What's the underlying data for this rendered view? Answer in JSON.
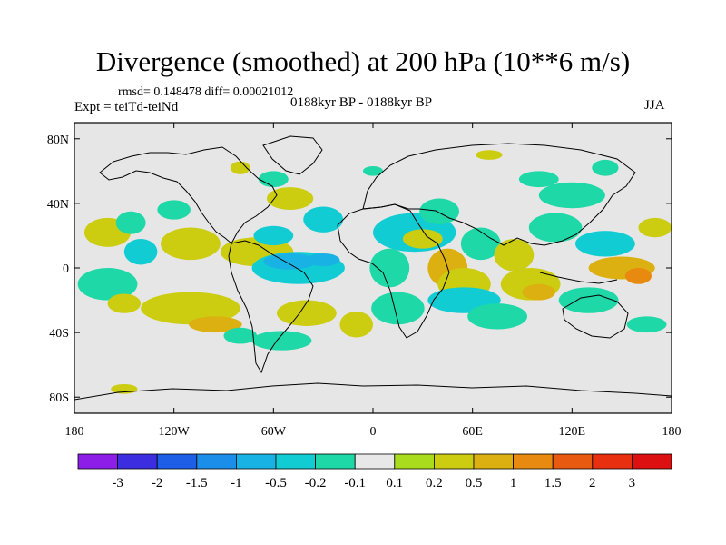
{
  "chart_data": {
    "type": "heatmap",
    "title": "Divergence (smoothed) at 200 hPa (10**6 m/s)",
    "stats": "rmsd= 0.148478 diff= 0.00021012",
    "experiment": "Expt = teiTd-teiNd",
    "period": "0188kyr BP - 0188kyr BP",
    "season": "JJA",
    "x_ticks": [
      "180",
      "120W",
      "60W",
      "0",
      "60E",
      "120E",
      "180"
    ],
    "y_ticks": [
      "80N",
      "40N",
      "0",
      "40S",
      "80S"
    ],
    "xlim": [
      -180,
      180
    ],
    "ylim": [
      -90,
      90
    ],
    "colorbar": {
      "labels": [
        "-3",
        "-2",
        "-1.5",
        "-1",
        "-0.5",
        "-0.2",
        "-0.1",
        "0.1",
        "0.2",
        "0.5",
        "1",
        "1.5",
        "2",
        "3"
      ],
      "colors": [
        "#8c1ee8",
        "#3c2ee0",
        "#1e5ee6",
        "#1a8ee8",
        "#18b2e4",
        "#12ccd4",
        "#1ed8a8",
        "#e8e8e8",
        "#a8dc1c",
        "#cccc10",
        "#dcb010",
        "#e88a10",
        "#e85a10",
        "#e83010",
        "#dc1010"
      ]
    },
    "regions": [
      {
        "lon": -160,
        "lat": 22,
        "rx": 14,
        "ry": 9,
        "level": "0.2"
      },
      {
        "lon": -140,
        "lat": 10,
        "rx": 10,
        "ry": 8,
        "level": "-0.2"
      },
      {
        "lon": -146,
        "lat": 28,
        "rx": 9,
        "ry": 7,
        "level": "-0.1"
      },
      {
        "lon": -110,
        "lat": 15,
        "rx": 18,
        "ry": 10,
        "level": "0.2"
      },
      {
        "lon": -120,
        "lat": 36,
        "rx": 10,
        "ry": 6,
        "level": "-0.1"
      },
      {
        "lon": -70,
        "lat": 10,
        "rx": 22,
        "ry": 9,
        "level": "0.2"
      },
      {
        "lon": -60,
        "lat": 20,
        "rx": 12,
        "ry": 6,
        "level": "-0.2"
      },
      {
        "lon": -50,
        "lat": 43,
        "rx": 14,
        "ry": 7,
        "level": "0.2"
      },
      {
        "lon": -60,
        "lat": 55,
        "rx": 9,
        "ry": 5,
        "level": "-0.1"
      },
      {
        "lon": -80,
        "lat": 62,
        "rx": 6,
        "ry": 4,
        "level": "0.2"
      },
      {
        "lon": -30,
        "lat": 30,
        "rx": 12,
        "ry": 8,
        "level": "-0.2"
      },
      {
        "lon": -45,
        "lat": 0,
        "rx": 28,
        "ry": 10,
        "level": "-0.2"
      },
      {
        "lon": -50,
        "lat": 4,
        "rx": 16,
        "ry": 5,
        "level": "-0.5"
      },
      {
        "lon": -30,
        "lat": 5,
        "rx": 10,
        "ry": 4,
        "level": "-0.5"
      },
      {
        "lon": -160,
        "lat": -10,
        "rx": 18,
        "ry": 10,
        "level": "-0.1"
      },
      {
        "lon": -150,
        "lat": -22,
        "rx": 10,
        "ry": 6,
        "level": "0.2"
      },
      {
        "lon": -110,
        "lat": -25,
        "rx": 30,
        "ry": 10,
        "level": "0.2"
      },
      {
        "lon": -95,
        "lat": -35,
        "rx": 16,
        "ry": 5,
        "level": "0.5"
      },
      {
        "lon": -40,
        "lat": -28,
        "rx": 18,
        "ry": 8,
        "level": "0.2"
      },
      {
        "lon": -55,
        "lat": -45,
        "rx": 18,
        "ry": 6,
        "level": "-0.1"
      },
      {
        "lon": -80,
        "lat": -42,
        "rx": 10,
        "ry": 5,
        "level": "-0.1"
      },
      {
        "lon": -10,
        "lat": -35,
        "rx": 10,
        "ry": 8,
        "level": "0.2"
      },
      {
        "lon": -150,
        "lat": -75,
        "rx": 8,
        "ry": 3,
        "level": "0.2"
      },
      {
        "lon": 25,
        "lat": 22,
        "rx": 25,
        "ry": 12,
        "level": "-0.2"
      },
      {
        "lon": 30,
        "lat": 18,
        "rx": 12,
        "ry": 6,
        "level": "0.2"
      },
      {
        "lon": 10,
        "lat": 0,
        "rx": 12,
        "ry": 12,
        "level": "-0.1"
      },
      {
        "lon": 15,
        "lat": -25,
        "rx": 16,
        "ry": 10,
        "level": "-0.1"
      },
      {
        "lon": 40,
        "lat": 35,
        "rx": 12,
        "ry": 8,
        "level": "-0.1"
      },
      {
        "lon": 45,
        "lat": 0,
        "rx": 12,
        "ry": 12,
        "level": "0.5"
      },
      {
        "lon": 55,
        "lat": -10,
        "rx": 16,
        "ry": 10,
        "level": "0.2"
      },
      {
        "lon": 55,
        "lat": -20,
        "rx": 22,
        "ry": 8,
        "level": "-0.2"
      },
      {
        "lon": 65,
        "lat": 15,
        "rx": 12,
        "ry": 10,
        "level": "-0.1"
      },
      {
        "lon": 85,
        "lat": 8,
        "rx": 12,
        "ry": 10,
        "level": "0.2"
      },
      {
        "lon": 95,
        "lat": -10,
        "rx": 18,
        "ry": 10,
        "level": "0.2"
      },
      {
        "lon": 100,
        "lat": -15,
        "rx": 10,
        "ry": 5,
        "level": "0.5"
      },
      {
        "lon": 75,
        "lat": -30,
        "rx": 18,
        "ry": 8,
        "level": "-0.1"
      },
      {
        "lon": 110,
        "lat": 25,
        "rx": 16,
        "ry": 9,
        "level": "-0.1"
      },
      {
        "lon": 120,
        "lat": 45,
        "rx": 20,
        "ry": 8,
        "level": "-0.1"
      },
      {
        "lon": 140,
        "lat": 15,
        "rx": 18,
        "ry": 8,
        "level": "-0.2"
      },
      {
        "lon": 150,
        "lat": 0,
        "rx": 20,
        "ry": 7,
        "level": "0.5"
      },
      {
        "lon": 160,
        "lat": -5,
        "rx": 8,
        "ry": 5,
        "level": "1"
      },
      {
        "lon": 130,
        "lat": -20,
        "rx": 18,
        "ry": 8,
        "level": "-0.1"
      },
      {
        "lon": 170,
        "lat": 25,
        "rx": 10,
        "ry": 6,
        "level": "0.2"
      },
      {
        "lon": 165,
        "lat": -35,
        "rx": 12,
        "ry": 5,
        "level": "-0.1"
      },
      {
        "lon": 100,
        "lat": 55,
        "rx": 12,
        "ry": 5,
        "level": "-0.1"
      },
      {
        "lon": 140,
        "lat": 62,
        "rx": 8,
        "ry": 5,
        "level": "-0.1"
      },
      {
        "lon": 70,
        "lat": 70,
        "rx": 8,
        "ry": 3,
        "level": "0.2"
      },
      {
        "lon": 0,
        "lat": 60,
        "rx": 6,
        "ry": 3,
        "level": "-0.1"
      }
    ]
  }
}
